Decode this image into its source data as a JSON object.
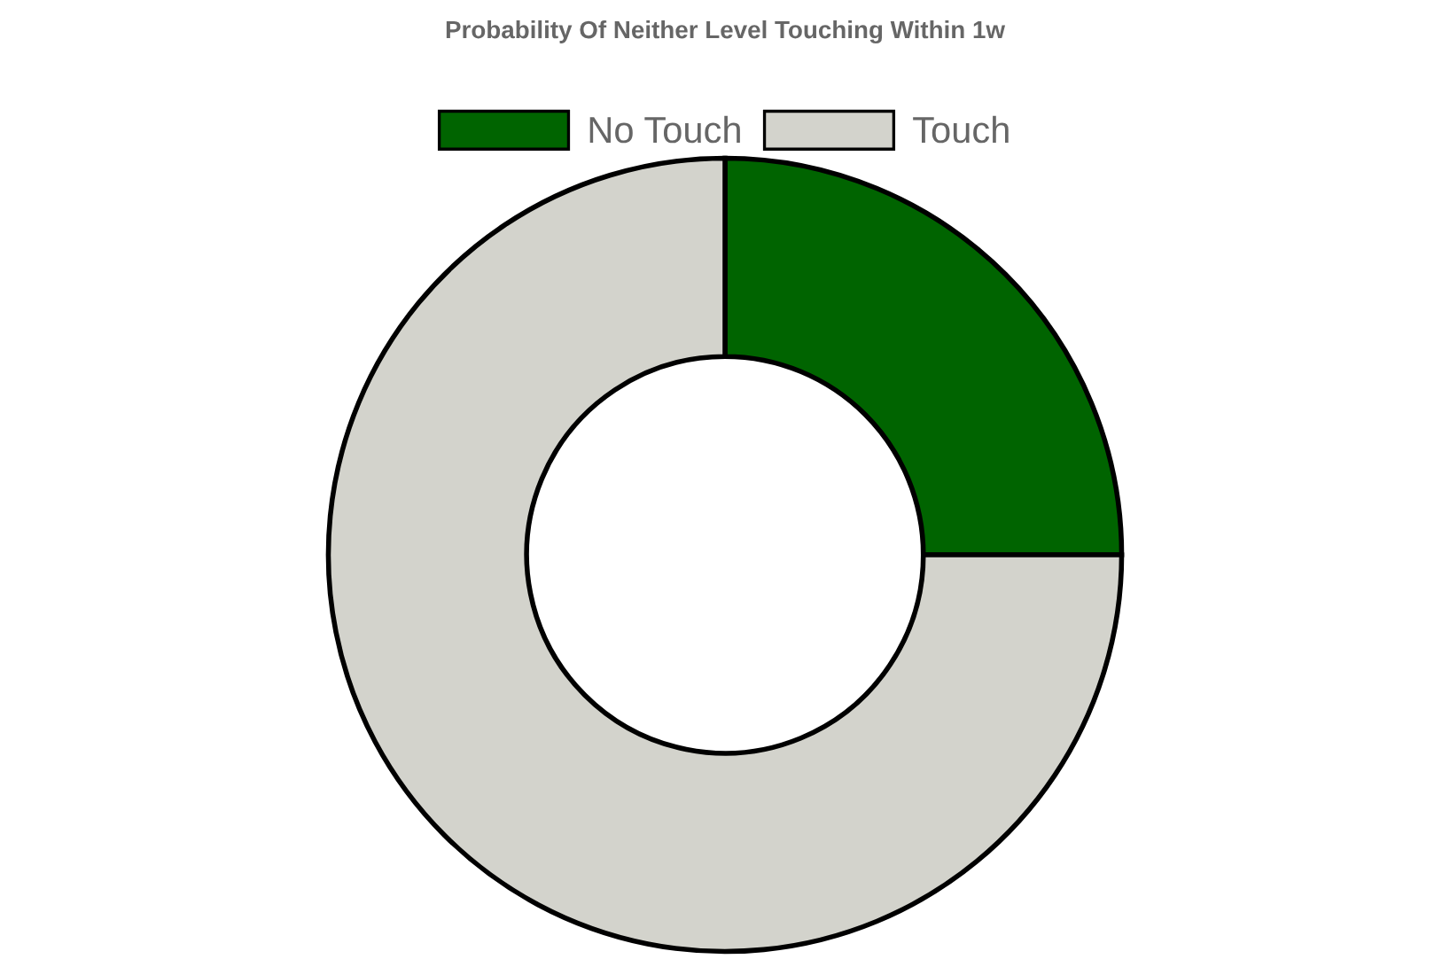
{
  "chart_data": {
    "type": "donut",
    "title": "Probability Of Neither Level Touching Within 1w",
    "categories": [
      "No Touch",
      "Touch"
    ],
    "values": [
      25,
      75
    ],
    "colors": [
      "#006400",
      "#d3d3cc"
    ],
    "legend": "top"
  }
}
